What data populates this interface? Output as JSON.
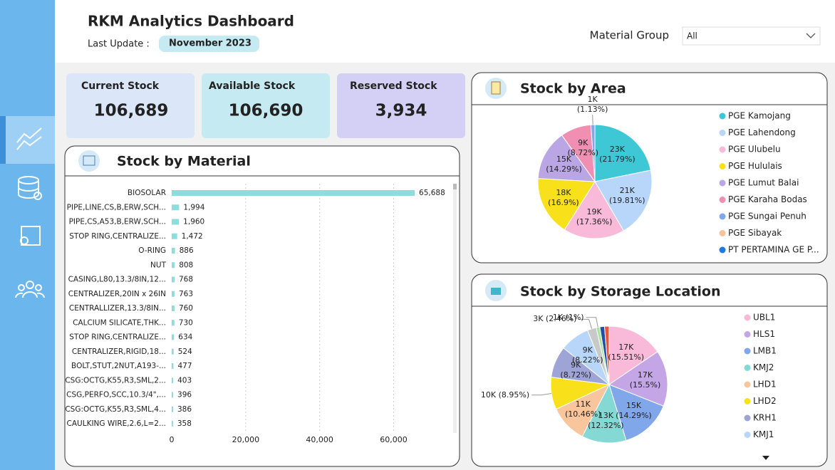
{
  "header": {
    "title": "RKM Analytics Dashboard",
    "last_update_label": "Last Update :",
    "last_update": "November 2023"
  },
  "filter": {
    "label": "Material Group",
    "value": "All"
  },
  "kpis": [
    {
      "label": "Current Stock",
      "value": "106,689"
    },
    {
      "label": "Available Stock",
      "value": "106,690"
    },
    {
      "label": "Reserved Stock",
      "value": "3,934"
    }
  ],
  "chart_data": [
    {
      "type": "bar",
      "orientation": "horizontal",
      "title": "Stock by Material",
      "categories": [
        "BIOSOLAR",
        "PIPE,LINE,CS,B,ERW,SCH...",
        "PIPE,CS,A53,B,ERW,SCH...",
        "STOP RING,CENTRALIZE...",
        "O-RING",
        "NUT",
        "CASING,L80,13.3/8IN,12...",
        "CENTRALIZER,20IN x 26IN",
        "CENTRALLIZER,13.3/8IN...",
        "CALCIUM SILICATE,THK...",
        "STOP RING,CENTRALIZE...",
        "CENTRALIZER,RIGID,18...",
        "BOLT,STUT,2NUT,A193-...",
        "CSG:OCTG,K55,R3,SML,2...",
        "CSG,PERFO,SCC,10.3/4\",...",
        "CSG:OCTG,K55,R3,SML,4...",
        "CAULKING WIRE,2.6,L=2..."
      ],
      "values": [
        65688,
        1994,
        1960,
        1472,
        886,
        808,
        768,
        763,
        760,
        730,
        634,
        524,
        477,
        403,
        396,
        386,
        358
      ],
      "value_labels": [
        "65,688",
        "1,994",
        "1,960",
        "1,472",
        "886",
        "808",
        "768",
        "763",
        "760",
        "730",
        "634",
        "524",
        "477",
        "403",
        "396",
        "386",
        "358"
      ],
      "color": "#8fdcdc",
      "xlim": [
        0,
        73000
      ],
      "xticks": [
        0,
        {
          "value": 20000,
          "label": "20,000"
        },
        {
          "value": 40000,
          "label": "40,000"
        },
        {
          "value": 60000,
          "label": "60,000"
        }
      ],
      "grid": true
    },
    {
      "type": "pie",
      "title": "Stock by Area",
      "categories": [
        "PGE Kamojang",
        "PGE Lahendong",
        "PGE Ulubelu",
        "PGE Hululais",
        "PGE Lumut Balai",
        "PGE Karaha Bodas",
        "PGE Sungai Penuh",
        "PGE Sibayak",
        "PT PERTAMINA GE P..."
      ],
      "values": [
        21.79,
        19.81,
        17.36,
        16.9,
        14.29,
        8.72,
        1.13,
        0,
        0
      ],
      "value_labels": [
        "23K (21.79%)",
        "21K (19.81%)",
        "19K (17.36%)",
        "18K (16.9%)",
        "15K (14.29%)",
        "9K (8.72%)",
        "1K (1.13%)",
        null,
        null
      ],
      "colors": [
        "#3ec7d4",
        "#b8d6fa",
        "#f8bad8",
        "#f8e11a",
        "#baa6e4",
        "#f08fb1",
        "#80a7ea",
        "#f8c39b",
        "#1f79e0"
      ]
    },
    {
      "type": "pie",
      "title": "Stock by Storage Location",
      "categories": [
        "UBL1",
        "HLS1",
        "LMB1",
        "KMJ2",
        "LHD1",
        "LHD2",
        "KRH1",
        "KMJ1",
        null,
        null,
        null,
        null
      ],
      "values": [
        15.51,
        15.5,
        14.29,
        12.32,
        10.46,
        8.95,
        8.72,
        8.22,
        2.46,
        1,
        1.3,
        1.27
      ],
      "value_labels": [
        "17K (15.51%)",
        "17K (15.5%)",
        "15K (14.29%)",
        "13K (12.32%)",
        "11K (10.46%)",
        "10K (8.95%)",
        "9K (8.72%)",
        "9K (8.22%)",
        "3K (2.46%)",
        "1K (1%)",
        null,
        null
      ],
      "colors": [
        "#f8bad8",
        "#c4a6e7",
        "#80a7ea",
        "#84d9d5",
        "#f8c59c",
        "#f8e11a",
        "#9ea4d5",
        "#b8d6fa",
        "#c9c9c9",
        "#a9e6a1",
        "#1f4fa8",
        "#e8543e"
      ]
    }
  ]
}
